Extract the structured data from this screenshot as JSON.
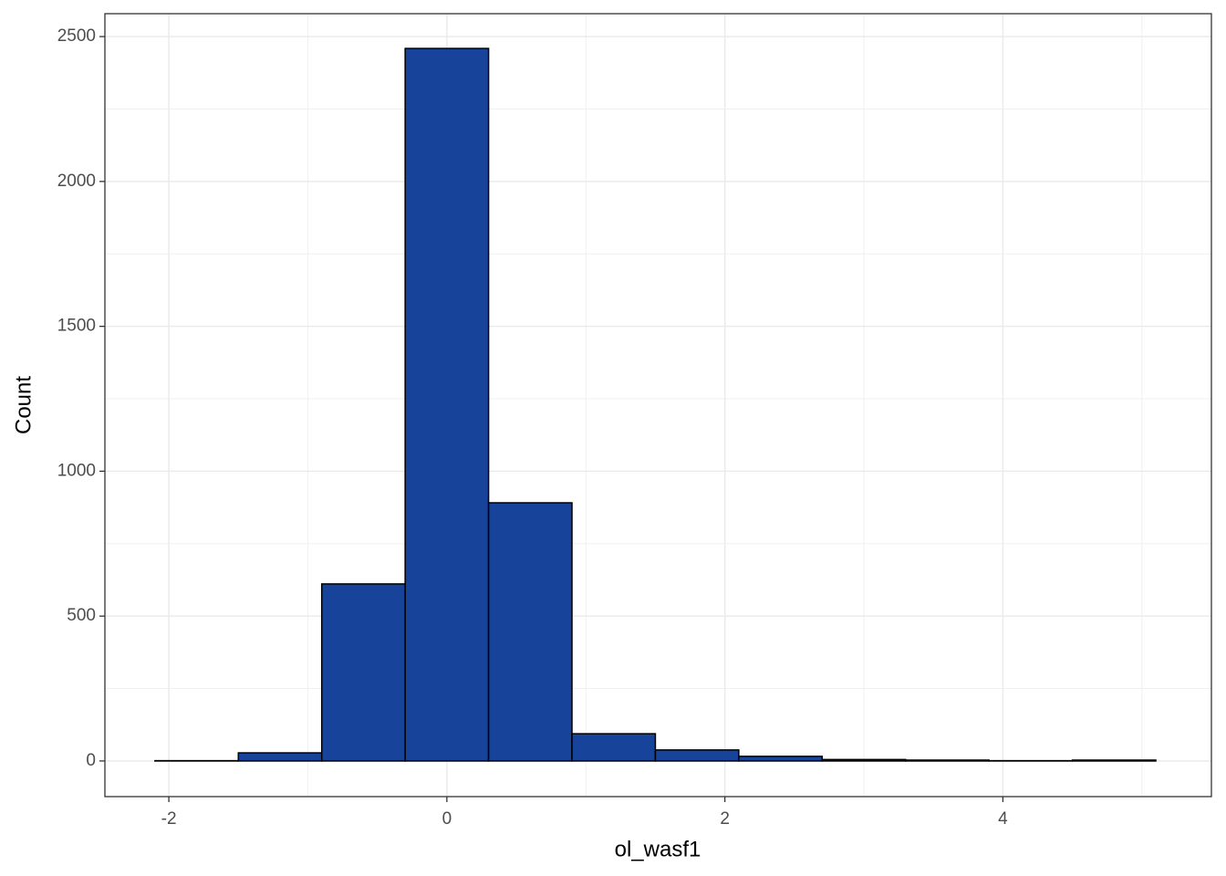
{
  "chart_data": {
    "type": "histogram",
    "x_label": "ol_wasf1",
    "y_label": "Count",
    "bins": [
      -2.1,
      -1.5,
      -0.9,
      -0.3,
      0.3,
      0.9,
      1.5,
      2.1,
      2.7,
      3.3,
      3.9,
      4.5,
      5.1
    ],
    "counts": [
      1,
      28,
      611,
      2459,
      891,
      94,
      38,
      16,
      5,
      3,
      1,
      3
    ],
    "color": "#17439b",
    "edge_color": "#000000",
    "xlim": [
      -2.46,
      5.5
    ],
    "xticks": [
      -2,
      0,
      2,
      4
    ],
    "ylim": [
      -123,
      2579
    ],
    "yticks": [
      0,
      500,
      1000,
      1500,
      2000,
      2500
    ],
    "grid": true
  }
}
